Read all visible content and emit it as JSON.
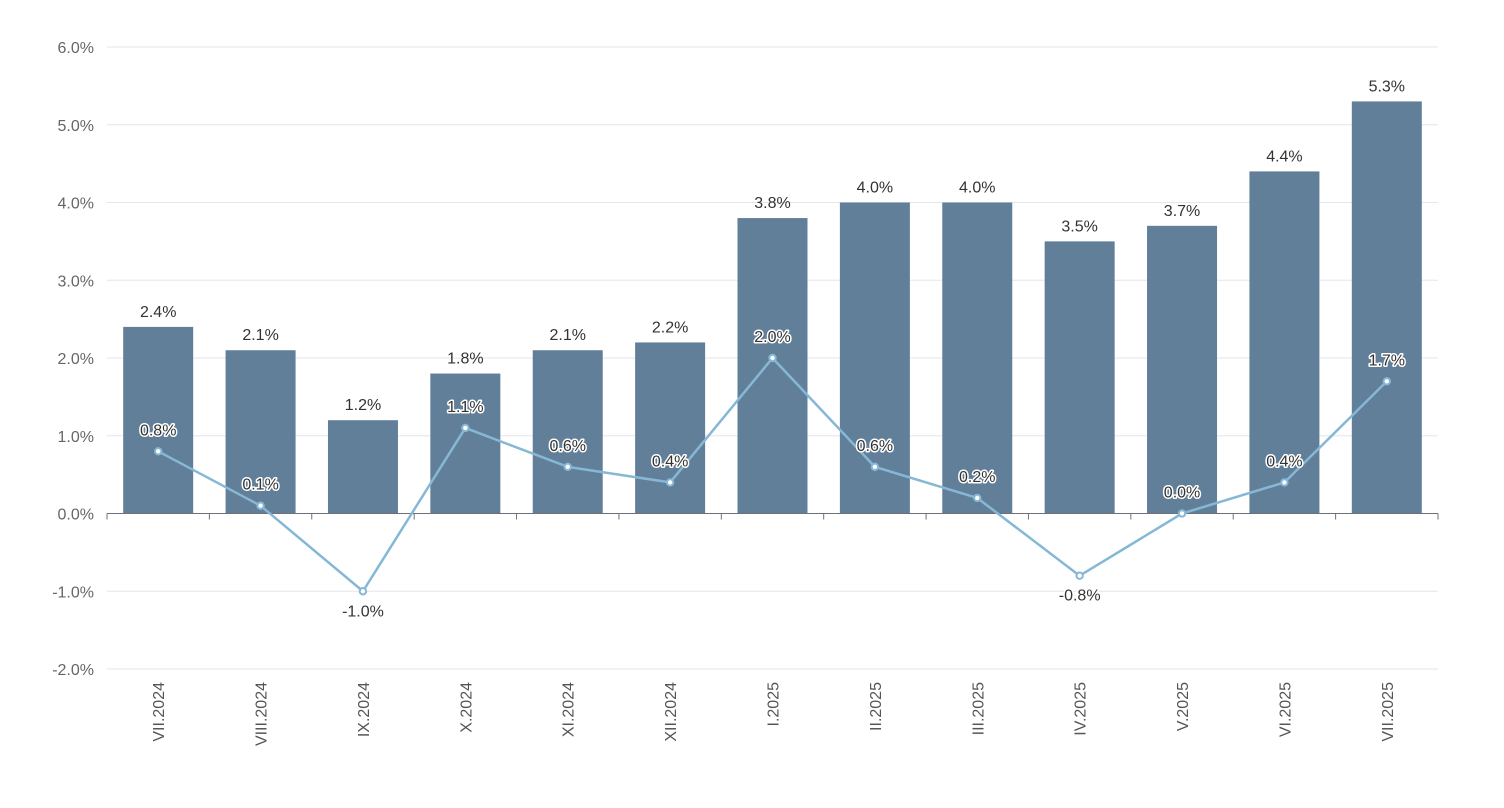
{
  "chart_data": {
    "type": "bar",
    "categories": [
      "VII.2024",
      "VIII.2024",
      "IX.2024",
      "X.2024",
      "XI.2024",
      "XII.2024",
      "I.2025",
      "II.2025",
      "III.2025",
      "IV.2025",
      "V.2025",
      "VI.2025",
      "VII.2025"
    ],
    "series": [
      {
        "type": "bar",
        "values": [
          2.4,
          2.1,
          1.2,
          1.8,
          2.1,
          2.2,
          3.8,
          4.0,
          4.0,
          3.5,
          3.7,
          4.4,
          5.3
        ],
        "color": "#627f99"
      },
      {
        "type": "line",
        "values": [
          0.8,
          0.1,
          -1.0,
          1.1,
          0.6,
          0.4,
          2.0,
          0.6,
          0.2,
          -0.8,
          0.0,
          0.4,
          1.7
        ],
        "color": "#86b8d6"
      }
    ],
    "ylim": [
      -2.0,
      6.0
    ],
    "yticks": [
      "6.0%",
      "5.0%",
      "4.0%",
      "3.0%",
      "2.0%",
      "1.0%",
      "0.0%",
      "-1.0%",
      "-2.0%"
    ],
    "grid": true,
    "value_suffix": "%"
  }
}
